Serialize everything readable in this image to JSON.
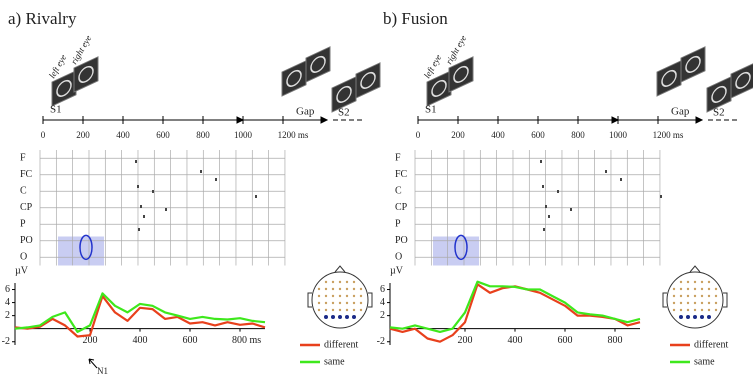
{
  "panels": [
    {
      "title": "a) Rivalry",
      "eyes": [
        "left eye",
        "right eye"
      ],
      "stimuli": [
        "S1",
        "Gap",
        "S2"
      ],
      "timeline_ticks": [
        0,
        200,
        400,
        600,
        800,
        1000,
        {
          "value": 1200,
          "label": "1200 ms"
        }
      ],
      "electrodes": [
        "F",
        "FC",
        "C",
        "CP",
        "P",
        "PO",
        "O"
      ]
    },
    {
      "title": "b) Fusion",
      "eyes": [
        "left eye",
        "right eye"
      ],
      "stimuli": [
        "S1",
        "Gap",
        "S2"
      ],
      "timeline_ticks": [
        0,
        200,
        400,
        600,
        800,
        1000,
        {
          "value": 1200,
          "label": "1200 ms"
        }
      ],
      "electrodes": [
        "F",
        "FC",
        "C",
        "CP",
        "P",
        "PO",
        "O"
      ]
    }
  ],
  "chart_data": [
    {
      "type": "line",
      "y_label": "µV",
      "annotations": [
        "N1"
      ],
      "x": [
        -100,
        -50,
        0,
        50,
        100,
        150,
        200,
        250,
        300,
        350,
        400,
        450,
        500,
        550,
        600,
        650,
        700,
        750,
        800,
        850,
        900
      ],
      "series": [
        {
          "name": "different",
          "color": "#e8401c",
          "values": [
            0.2,
            0,
            0.3,
            1.5,
            0.5,
            -1.2,
            -1.0,
            5.0,
            2.5,
            1.2,
            3.2,
            3.0,
            1.5,
            1.8,
            0.8,
            1.0,
            0.5,
            1.0,
            0.6,
            0.8,
            0.2
          ]
        },
        {
          "name": "same",
          "color": "#3ee81c",
          "values": [
            0,
            0.2,
            0.5,
            1.8,
            2.5,
            -0.5,
            0.5,
            5.4,
            3.5,
            2.5,
            3.8,
            3.5,
            2.5,
            2.0,
            1.5,
            1.8,
            1.5,
            1.4,
            1.6,
            1.2,
            1.0
          ]
        }
      ],
      "xlim": [
        -100,
        900
      ],
      "xticks": [
        200,
        400,
        600,
        {
          "value": 800,
          "label": "800 ms"
        }
      ],
      "ylim": [
        -2.5,
        7
      ],
      "yticks": [
        -2,
        2,
        4,
        6
      ]
    },
    {
      "type": "line",
      "y_label": "µV",
      "annotations": [],
      "x": [
        -100,
        -50,
        0,
        50,
        100,
        150,
        200,
        250,
        300,
        350,
        400,
        450,
        500,
        550,
        600,
        650,
        700,
        750,
        800,
        850,
        900
      ],
      "series": [
        {
          "name": "different",
          "color": "#e8401c",
          "values": [
            0,
            -0.5,
            0,
            -1.5,
            -2,
            -1,
            1.0,
            6.8,
            5.5,
            6.2,
            6.5,
            6.0,
            5.5,
            4.5,
            3.5,
            2.0,
            2.0,
            1.8,
            1.5,
            0.5,
            1.0
          ]
        },
        {
          "name": "same",
          "color": "#3ee81c",
          "values": [
            0.2,
            0,
            0.5,
            0,
            -0.5,
            0,
            2.5,
            7.2,
            6.5,
            6.5,
            6.4,
            6.0,
            6.0,
            5.0,
            4.0,
            2.5,
            2.2,
            2.0,
            1.5,
            1.0,
            1.5
          ]
        }
      ],
      "xlim": [
        -100,
        900
      ],
      "xticks": [
        200,
        400,
        600,
        800
      ],
      "ylim": [
        -2.5,
        7
      ],
      "yticks": [
        -2,
        2,
        4,
        6
      ]
    }
  ]
}
